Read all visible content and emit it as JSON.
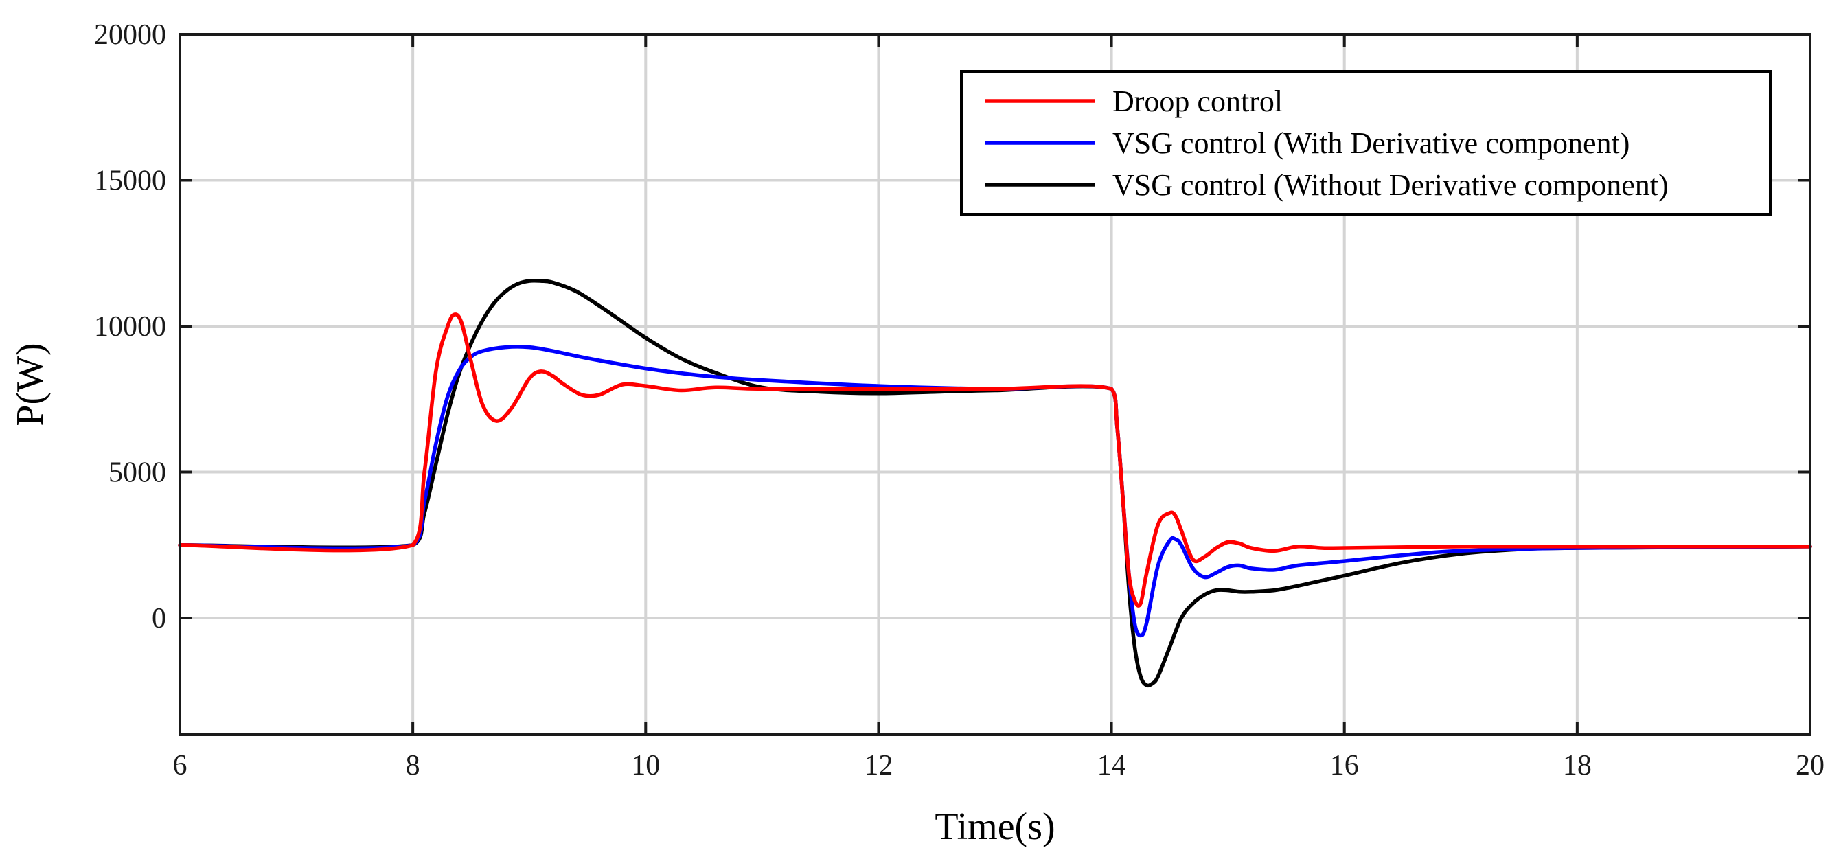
{
  "chart_data": {
    "type": "line",
    "title": "",
    "xlabel": "Time(s)",
    "ylabel": "P(W)",
    "xlim": [
      6,
      20
    ],
    "ylim": [
      -4000,
      20000
    ],
    "xticks": [
      6,
      8,
      10,
      12,
      14,
      16,
      18,
      20
    ],
    "yticks": [
      0,
      5000,
      10000,
      15000,
      20000
    ],
    "grid": true,
    "legend_position": "top-right",
    "series": [
      {
        "name": "Droop control",
        "color": "#ff0000",
        "x": [
          6.0,
          8.0,
          8.1,
          8.2,
          8.3,
          8.36,
          8.42,
          8.5,
          8.6,
          8.72,
          8.85,
          9.0,
          9.1,
          9.2,
          9.3,
          9.45,
          9.6,
          9.8,
          10.0,
          10.3,
          10.6,
          11.0,
          12.0,
          13.0,
          14.0,
          14.05,
          14.1,
          14.15,
          14.2,
          14.25,
          14.3,
          14.4,
          14.5,
          14.55,
          14.6,
          14.7,
          14.8,
          14.9,
          15.0,
          15.1,
          15.2,
          15.4,
          15.6,
          15.8,
          16.0,
          17.0,
          18.0,
          20.0
        ],
        "y": [
          2500,
          2500,
          5000,
          8500,
          10000,
          10400,
          10100,
          8800,
          7300,
          6750,
          7200,
          8200,
          8450,
          8300,
          8000,
          7650,
          7650,
          8000,
          7950,
          7800,
          7900,
          7850,
          7850,
          7850,
          7850,
          6500,
          4000,
          1500,
          600,
          500,
          1500,
          3200,
          3600,
          3500,
          3000,
          2000,
          2100,
          2400,
          2600,
          2550,
          2400,
          2300,
          2450,
          2400,
          2400,
          2450,
          2450,
          2450
        ]
      },
      {
        "name": "VSG control (With Derivative component)",
        "color": "#0000ff",
        "x": [
          6.0,
          8.0,
          8.1,
          8.2,
          8.3,
          8.4,
          8.5,
          8.6,
          8.8,
          9.0,
          9.2,
          9.5,
          10.0,
          10.5,
          11.0,
          12.0,
          13.0,
          14.0,
          14.05,
          14.1,
          14.15,
          14.2,
          14.25,
          14.3,
          14.4,
          14.5,
          14.55,
          14.6,
          14.7,
          14.8,
          14.9,
          15.0,
          15.1,
          15.2,
          15.4,
          15.6,
          16.0,
          16.5,
          17.0,
          18.0,
          20.0
        ],
        "y": [
          2500,
          2500,
          4000,
          6000,
          7600,
          8500,
          8950,
          9150,
          9280,
          9280,
          9150,
          8900,
          8550,
          8300,
          8150,
          7950,
          7850,
          7850,
          6500,
          4000,
          1500,
          -200,
          -600,
          -200,
          1800,
          2650,
          2700,
          2500,
          1700,
          1400,
          1550,
          1750,
          1800,
          1700,
          1650,
          1800,
          1950,
          2150,
          2300,
          2400,
          2450
        ]
      },
      {
        "name": "VSG control (Without Derivative component)",
        "color": "#000000",
        "x": [
          6.0,
          8.0,
          8.1,
          8.2,
          8.3,
          8.4,
          8.5,
          8.6,
          8.7,
          8.8,
          8.9,
          9.0,
          9.1,
          9.2,
          9.4,
          9.6,
          9.8,
          10.0,
          10.3,
          10.6,
          11.0,
          11.5,
          12.0,
          12.5,
          13.0,
          14.0,
          14.05,
          14.1,
          14.15,
          14.2,
          14.25,
          14.3,
          14.35,
          14.4,
          14.5,
          14.6,
          14.7,
          14.8,
          14.9,
          15.0,
          15.1,
          15.2,
          15.4,
          15.6,
          16.0,
          16.5,
          17.0,
          17.5,
          18.0,
          20.0
        ],
        "y": [
          2500,
          2500,
          3600,
          5300,
          7000,
          8400,
          9400,
          10200,
          10800,
          11200,
          11450,
          11550,
          11550,
          11500,
          11200,
          10700,
          10150,
          9600,
          8900,
          8400,
          7900,
          7750,
          7700,
          7750,
          7800,
          7850,
          6500,
          4000,
          1000,
          -1000,
          -2000,
          -2300,
          -2250,
          -2000,
          -1000,
          0,
          500,
          800,
          950,
          950,
          900,
          900,
          950,
          1100,
          1450,
          1900,
          2200,
          2350,
          2400,
          2450
        ]
      }
    ]
  }
}
